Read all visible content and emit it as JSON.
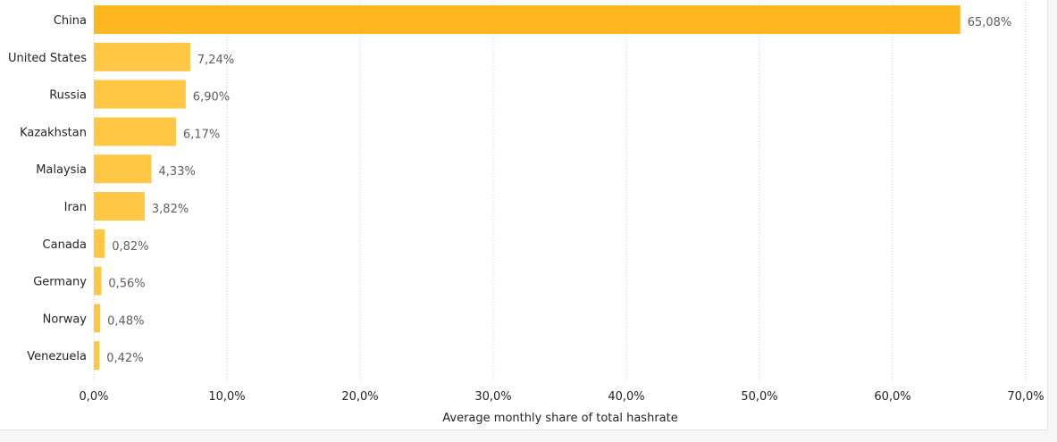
{
  "chart_data": {
    "type": "bar",
    "orientation": "horizontal",
    "categories": [
      "China",
      "United States",
      "Russia",
      "Kazakhstan",
      "Malaysia",
      "Iran",
      "Canada",
      "Germany",
      "Norway",
      "Venezuela"
    ],
    "values": [
      65.08,
      7.24,
      6.9,
      6.17,
      4.33,
      3.82,
      0.82,
      0.56,
      0.48,
      0.42
    ],
    "data_labels": [
      "65,08%",
      "7,24%",
      "6,90%",
      "6,17%",
      "4,33%",
      "3,82%",
      "0,82%",
      "0,56%",
      "0,48%",
      "0,42%"
    ],
    "xlabel": "Average monthly share of total hashrate",
    "xlim": [
      0,
      70
    ],
    "x_ticks": [
      0,
      10,
      20,
      30,
      40,
      50,
      60,
      70
    ],
    "x_tick_labels": [
      "0,0%",
      "10,0%",
      "20,0%",
      "30,0%",
      "40,0%",
      "50,0%",
      "60,0%",
      "70,0%"
    ],
    "grid": "vertical-dotted",
    "colors": {
      "highlight_bar": "#FFB61F",
      "bar": "#FFC744"
    }
  }
}
